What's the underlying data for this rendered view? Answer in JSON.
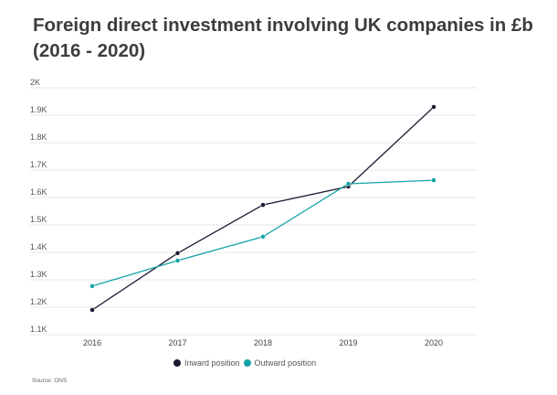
{
  "chart_data": {
    "type": "line",
    "title": "Foreign direct investment involving UK companies in £b (2016 - 2020)",
    "xlabel": "",
    "ylabel": "",
    "x": [
      "2016",
      "2017",
      "2018",
      "2019",
      "2020"
    ],
    "ylim": [
      1100,
      2000
    ],
    "yticks": [
      1100,
      1200,
      1300,
      1400,
      1500,
      1600,
      1700,
      1800,
      1900,
      2000
    ],
    "ytick_labels": [
      "1.1K",
      "1.2K",
      "1.3K",
      "1.4K",
      "1.5K",
      "1.6K",
      "1.7K",
      "1.8K",
      "1.9K",
      "2K"
    ],
    "grid": true,
    "legend_position": "bottom",
    "series": [
      {
        "name": "Inward position",
        "color": "#1b1a33",
        "values": [
          1190,
          1397,
          1573,
          1640,
          1930
        ]
      },
      {
        "name": "Outward position",
        "color": "#15a3a6",
        "values": [
          1277,
          1370,
          1457,
          1650,
          1663
        ]
      }
    ],
    "source": "Source: ONS"
  }
}
